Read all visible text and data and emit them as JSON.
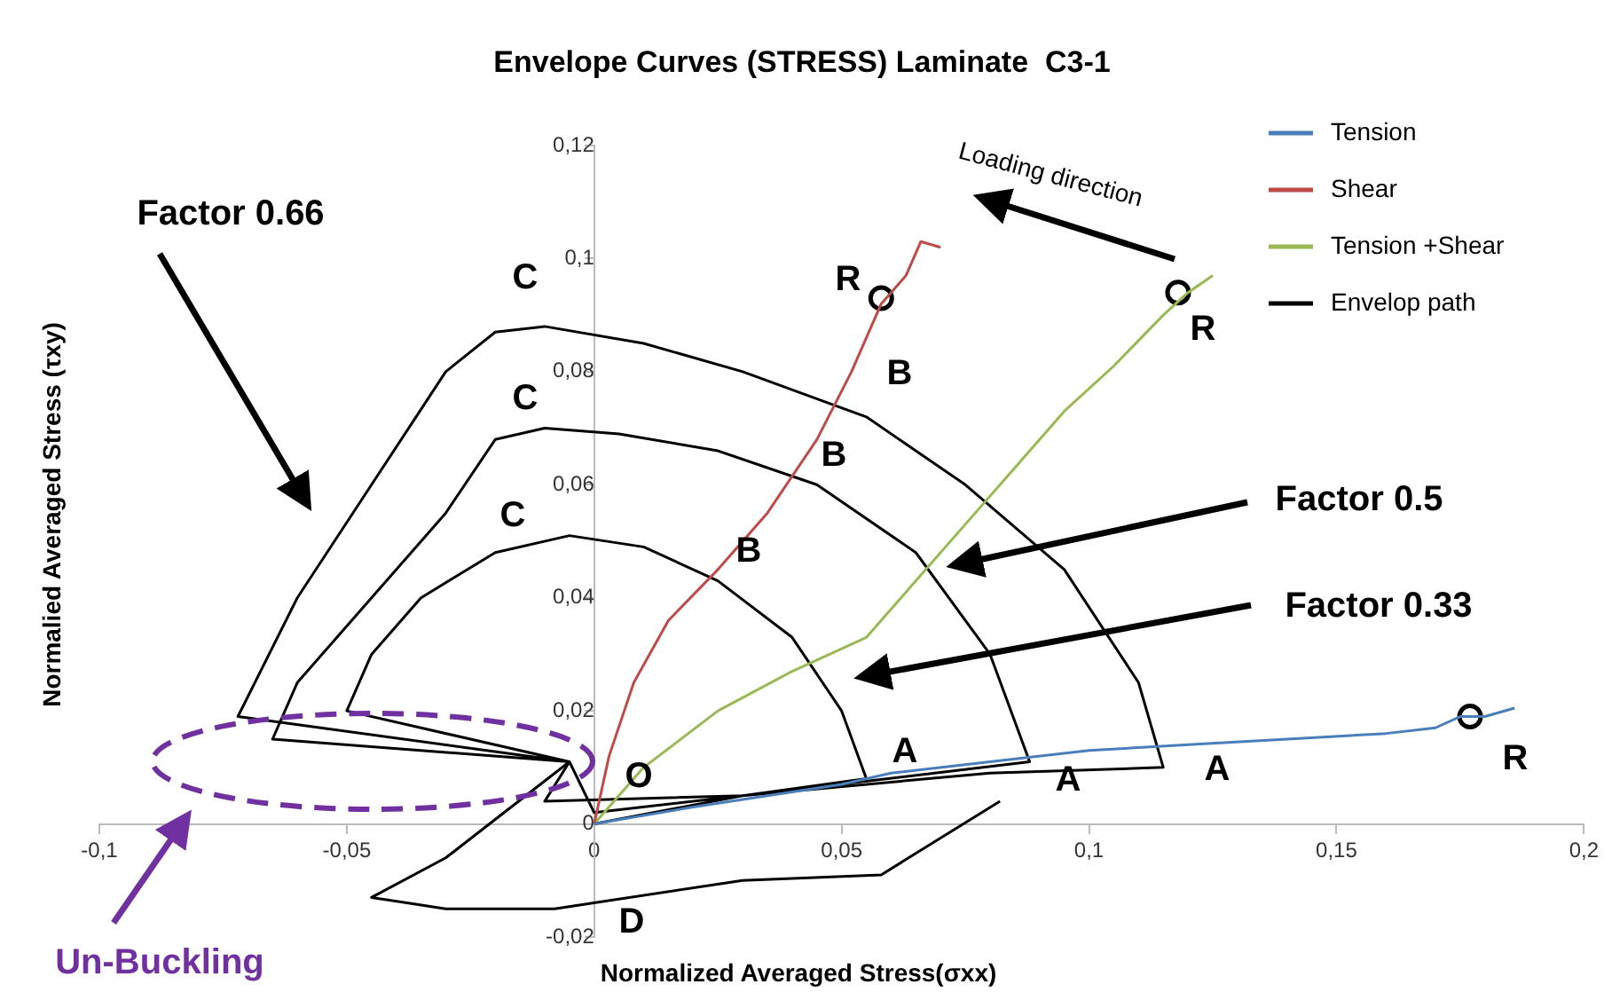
{
  "chart_data": {
    "type": "line",
    "title": "Envelope Curves (STRESS) Laminate  C3-1",
    "xlabel": "Normalized Averaged Stress(σxx)",
    "ylabel": "Normalied Averaged Stress (τxy)",
    "xlim": [
      -0.1,
      0.2
    ],
    "ylim": [
      -0.02,
      0.12
    ],
    "xticks": [
      {
        "value": -0.1,
        "label": "-0,1"
      },
      {
        "value": -0.05,
        "label": "-0,05"
      },
      0,
      {
        "value": 0.05,
        "label": "0,05"
      },
      {
        "value": 0.1,
        "label": "0,1"
      },
      {
        "value": 0.15,
        "label": "0,15"
      },
      {
        "value": 0.2,
        "label": "0,2"
      }
    ],
    "yticks": [
      {
        "value": -0.02,
        "label": "-0,02"
      },
      0,
      {
        "value": 0.02,
        "label": "0,02"
      },
      {
        "value": 0.04,
        "label": "0,04"
      },
      {
        "value": 0.06,
        "label": "0,06"
      },
      {
        "value": 0.08,
        "label": "0,08"
      },
      {
        "value": 0.1,
        "label": "0,1"
      },
      {
        "value": 0.12,
        "label": "0,12"
      }
    ],
    "grid": false,
    "legend": "top right",
    "marker": "none",
    "line_style": "solid",
    "series": [
      {
        "name": "Tension",
        "color": "#4a7ebb",
        "x": [
          0,
          0.02,
          0.05,
          0.06,
          0.08,
          0.1,
          0.12,
          0.14,
          0.16,
          0.17,
          0.175,
          0.18,
          0.186
        ],
        "values": [
          0,
          0.003,
          0.007,
          0.009,
          0.011,
          0.013,
          0.014,
          0.015,
          0.016,
          0.017,
          0.019,
          0.019,
          0.0205
        ]
      },
      {
        "name": "Shear",
        "color": "#be4b48",
        "x": [
          0,
          0.003,
          0.008,
          0.015,
          0.025,
          0.035,
          0.045,
          0.052,
          0.058,
          0.063,
          0.066,
          0.07
        ],
        "values": [
          0,
          0.012,
          0.025,
          0.036,
          0.045,
          0.055,
          0.068,
          0.08,
          0.092,
          0.097,
          0.103,
          0.102
        ]
      },
      {
        "name": "Tension +Shear",
        "color": "#98b954",
        "x": [
          0,
          0.01,
          0.025,
          0.04,
          0.055,
          0.065,
          0.075,
          0.085,
          0.095,
          0.105,
          0.115,
          0.12,
          0.125
        ],
        "values": [
          0,
          0.01,
          0.02,
          0.027,
          0.033,
          0.043,
          0.053,
          0.063,
          0.073,
          0.081,
          0.09,
          0.094,
          0.097
        ]
      },
      {
        "name": "Envelop path",
        "color": "#000000",
        "x": [
          0,
          0.03,
          0.055,
          0.05,
          0.04,
          0.025,
          0.01,
          -0.005,
          -0.02,
          -0.035,
          -0.045,
          -0.05,
          -0.005,
          0,
          0.04,
          0.088,
          0.08,
          0.065,
          0.045,
          0.025,
          0.005,
          -0.01,
          -0.02,
          -0.03,
          -0.045,
          -0.06,
          -0.065,
          -0.005,
          -0.01,
          0.03,
          0.08,
          0.115,
          0.11,
          0.095,
          0.075,
          0.055,
          0.03,
          0.01,
          -0.01,
          -0.02,
          -0.03,
          -0.045,
          -0.06,
          -0.072,
          -0.005,
          -0.03,
          -0.045,
          -0.03,
          -0.008,
          0.03,
          0.058,
          0.082
        ],
        "values": [
          0,
          0.005,
          0.008,
          0.02,
          0.033,
          0.043,
          0.049,
          0.051,
          0.048,
          0.04,
          0.03,
          0.02,
          0.011,
          0.002,
          0.006,
          0.011,
          0.03,
          0.048,
          0.06,
          0.066,
          0.069,
          0.07,
          0.068,
          0.055,
          0.04,
          0.025,
          0.015,
          0.011,
          0.004,
          0.005,
          0.009,
          0.01,
          0.025,
          0.045,
          0.06,
          0.072,
          0.08,
          0.085,
          0.088,
          0.087,
          0.08,
          0.06,
          0.04,
          0.019,
          0.011,
          -0.006,
          -0.013,
          -0.015,
          -0.015,
          -0.01,
          -0.009,
          0.004
        ]
      },
      {
        "type": "scatter",
        "color": "#000000",
        "marker": "circle",
        "x": [
          0.058,
          0.118,
          0.177
        ],
        "values": [
          0.093,
          0.094,
          0.019
        ]
      }
    ],
    "annotations": [
      "O",
      "A",
      "A",
      "A",
      "B",
      "B",
      "B",
      "C",
      "C",
      "C",
      "R",
      "R",
      "R",
      "D",
      "Factor 0.66",
      "Factor 0.5",
      "Factor 0.33",
      "Loading direction",
      "Un-Buckling"
    ]
  }
}
